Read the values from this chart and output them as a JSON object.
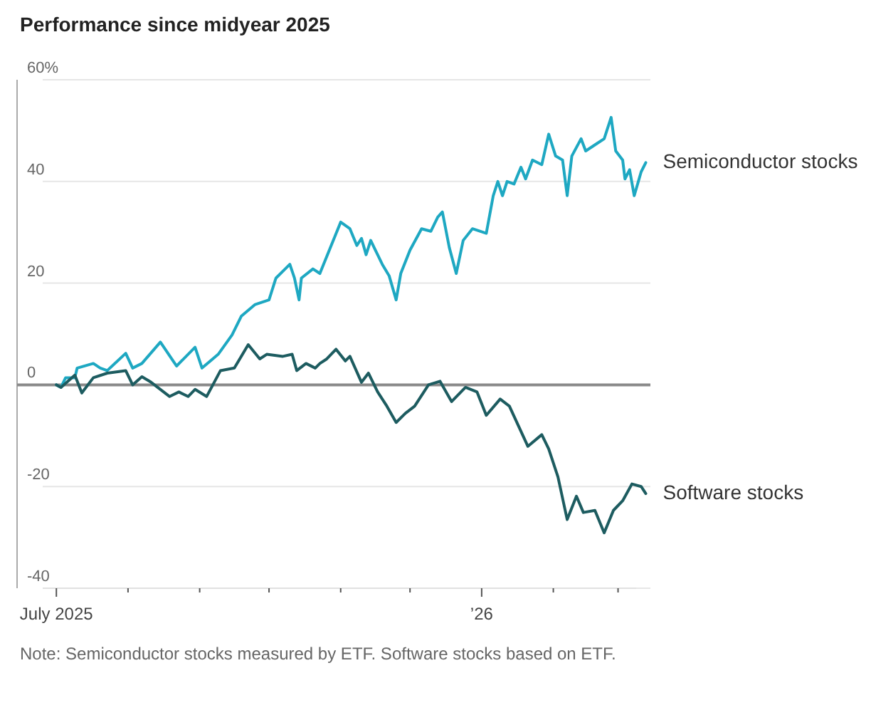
{
  "chart_data": {
    "type": "line",
    "title": "Performance since midyear 2025",
    "xlim": [
      "2025-06-14",
      "2026-03-15"
    ],
    "xticks": [
      {
        "value": "2025-07-01",
        "label": "July 2025"
      },
      {
        "value": "2025-08-01",
        "label": null
      },
      {
        "value": "2025-09-01",
        "label": null
      },
      {
        "value": "2025-10-01",
        "label": null
      },
      {
        "value": "2025-11-01",
        "label": null
      },
      {
        "value": "2025-12-01",
        "label": null
      },
      {
        "value": "2026-01-01",
        "label": "’26"
      },
      {
        "value": "2026-02-01",
        "label": null
      },
      {
        "value": "2026-03-01",
        "label": null
      }
    ],
    "ylim": [
      -40,
      60
    ],
    "yticks": [
      -40,
      -20,
      0,
      20,
      40,
      {
        "value": 60,
        "label": "60%"
      }
    ],
    "grid": "y",
    "legend": false,
    "marker": "none",
    "line_style": "solid",
    "ref_lines": [
      {
        "axis": "y",
        "value": 0,
        "label": null,
        "color": "#8a8a8a"
      }
    ],
    "series": [
      {
        "name": "Semiconductor stocks",
        "color": "#1ea8c2",
        "x": [
          "2025-07-01",
          "2025-07-03",
          "2025-07-05",
          "2025-07-09",
          "2025-07-10",
          "2025-07-17",
          "2025-07-20",
          "2025-07-23",
          "2025-07-31",
          "2025-08-03",
          "2025-08-07",
          "2025-08-15",
          "2025-08-22",
          "2025-08-30",
          "2025-09-02",
          "2025-09-09",
          "2025-09-15",
          "2025-09-19",
          "2025-09-25",
          "2025-10-01",
          "2025-10-04",
          "2025-10-08",
          "2025-10-10",
          "2025-10-12",
          "2025-10-14",
          "2025-10-15",
          "2025-10-20",
          "2025-10-23",
          "2025-11-01",
          "2025-11-05",
          "2025-11-08",
          "2025-11-10",
          "2025-11-12",
          "2025-11-14",
          "2025-11-16",
          "2025-11-19",
          "2025-11-22",
          "2025-11-25",
          "2025-11-27",
          "2025-12-01",
          "2025-12-06",
          "2025-12-10",
          "2025-12-13",
          "2025-12-15",
          "2025-12-18",
          "2025-12-21",
          "2025-12-24",
          "2025-12-28",
          "2026-01-03",
          "2026-01-06",
          "2026-01-08",
          "2026-01-10",
          "2026-01-12",
          "2026-01-15",
          "2026-01-18",
          "2026-01-20",
          "2026-01-23",
          "2026-01-27",
          "2026-01-30",
          "2026-02-02",
          "2026-02-05",
          "2026-02-07",
          "2026-02-09",
          "2026-02-13",
          "2026-02-15",
          "2026-02-20",
          "2026-02-23",
          "2026-02-26",
          "2026-02-28",
          "2026-03-03",
          "2026-03-04",
          "2026-03-06",
          "2026-03-08",
          "2026-03-11",
          "2026-03-13"
        ],
        "values": [
          0,
          -0.5,
          1.4,
          1.4,
          3.3,
          4.2,
          3.3,
          2.8,
          6.2,
          3.3,
          4.2,
          8.4,
          3.7,
          7.4,
          3.3,
          6,
          9.8,
          13.5,
          15.8,
          16.7,
          21,
          22.8,
          23.7,
          21,
          16.7,
          21,
          22.8,
          21.9,
          32,
          30.7,
          27.4,
          28.8,
          25.6,
          28.4,
          26.5,
          23.7,
          21.4,
          16.7,
          21.9,
          26.5,
          30.7,
          30.2,
          33,
          34,
          27,
          21.9,
          28.4,
          30.7,
          29.8,
          37.2,
          40,
          37.2,
          40,
          39.5,
          42.8,
          40.5,
          44.2,
          43.3,
          49.3,
          45,
          44.2,
          37.2,
          45,
          48.4,
          46,
          47.5,
          48.4,
          52.6,
          46,
          44.2,
          40.5,
          42.3,
          37.2,
          41.9,
          43.7
        ]
      },
      {
        "name": "Software stocks",
        "color": "#1d5c60",
        "x": [
          "2025-07-01",
          "2025-07-03",
          "2025-07-09",
          "2025-07-12",
          "2025-07-17",
          "2025-07-23",
          "2025-07-31",
          "2025-08-03",
          "2025-08-07",
          "2025-08-11",
          "2025-08-19",
          "2025-08-23",
          "2025-08-27",
          "2025-08-30",
          "2025-09-04",
          "2025-09-10",
          "2025-09-16",
          "2025-09-22",
          "2025-09-27",
          "2025-09-30",
          "2025-10-07",
          "2025-10-11",
          "2025-10-13",
          "2025-10-17",
          "2025-10-21",
          "2025-10-23",
          "2025-10-26",
          "2025-10-30",
          "2025-11-03",
          "2025-11-05",
          "2025-11-10",
          "2025-11-13",
          "2025-11-17",
          "2025-11-21",
          "2025-11-25",
          "2025-11-29",
          "2025-12-03",
          "2025-12-09",
          "2025-12-14",
          "2025-12-19",
          "2025-12-25",
          "2025-12-30",
          "2026-01-03",
          "2026-01-09",
          "2026-01-13",
          "2026-01-21",
          "2026-01-27",
          "2026-01-30",
          "2026-02-03",
          "2026-02-07",
          "2026-02-11",
          "2026-02-14",
          "2026-02-19",
          "2026-02-23",
          "2026-02-27",
          "2026-03-03",
          "2026-03-07",
          "2026-03-11",
          "2026-03-13"
        ],
        "values": [
          0,
          -0.5,
          1.9,
          -1.6,
          1.4,
          2.3,
          2.8,
          0,
          1.6,
          0.5,
          -2.3,
          -1.4,
          -2.3,
          -0.9,
          -2.3,
          2.8,
          3.3,
          7.9,
          5.1,
          6,
          5.6,
          6,
          2.8,
          4.2,
          3.3,
          4.2,
          5.1,
          7,
          4.7,
          5.6,
          0.5,
          2.3,
          -1.4,
          -4.2,
          -7.4,
          -5.6,
          -4.2,
          0,
          0.7,
          -3.3,
          -0.5,
          -1.4,
          -6,
          -2.8,
          -4.2,
          -12.1,
          -9.8,
          -12.6,
          -18.1,
          -26.5,
          -21.9,
          -25.1,
          -24.7,
          -29.1,
          -24.7,
          -22.8,
          -19.5,
          -20,
          -21.4
        ]
      }
    ],
    "annotations": [
      "Note: Semiconductor stocks measured by ETF. Software stocks based on ETF."
    ]
  }
}
